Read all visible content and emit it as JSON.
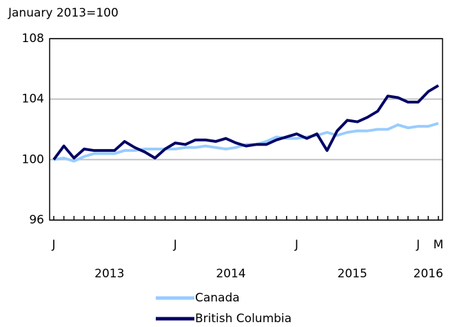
{
  "chart_data": {
    "type": "line",
    "y_label": "January 2013=100",
    "categories": [
      "J",
      null,
      null,
      null,
      null,
      null,
      null,
      null,
      null,
      null,
      null,
      null,
      "J",
      null,
      null,
      null,
      null,
      null,
      null,
      null,
      null,
      null,
      null,
      null,
      "J",
      null,
      null,
      null,
      null,
      null,
      null,
      null,
      null,
      null,
      null,
      null,
      "J",
      null,
      "M"
    ],
    "year_labels": [
      "2013",
      "2014",
      "2015",
      "2016"
    ],
    "series": [
      {
        "name": "Canada",
        "color": "#99ccff",
        "values": [
          100.0,
          100.1,
          99.9,
          100.2,
          100.4,
          100.4,
          100.4,
          100.6,
          100.6,
          100.7,
          100.7,
          100.7,
          100.7,
          100.8,
          100.8,
          100.9,
          100.8,
          100.7,
          100.8,
          101.0,
          101.0,
          101.2,
          101.5,
          101.4,
          101.4,
          101.5,
          101.6,
          101.8,
          101.6,
          101.8,
          101.9,
          101.9,
          102.0,
          102.0,
          102.3,
          102.1,
          102.2,
          102.2,
          102.4
        ]
      },
      {
        "name": "British Columbia",
        "color": "#000066",
        "values": [
          100.0,
          100.9,
          100.1,
          100.7,
          100.6,
          100.6,
          100.6,
          101.2,
          100.8,
          100.5,
          100.1,
          100.7,
          101.1,
          101.0,
          101.3,
          101.3,
          101.2,
          101.4,
          101.1,
          100.9,
          101.0,
          101.0,
          101.3,
          101.5,
          101.7,
          101.4,
          101.7,
          100.6,
          101.9,
          102.6,
          102.5,
          102.8,
          103.2,
          104.2,
          104.1,
          103.8,
          103.8,
          104.5,
          104.9
        ]
      }
    ],
    "ylim": [
      96,
      108
    ],
    "yticks": [
      96,
      100,
      104,
      108
    ],
    "grid": true
  }
}
